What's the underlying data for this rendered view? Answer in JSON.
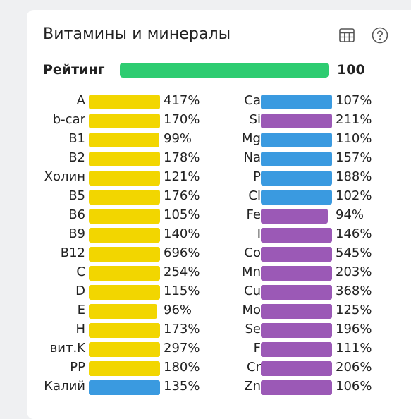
{
  "title": "Витамины и минералы",
  "icons": {
    "table": "table-icon",
    "help": "help-icon"
  },
  "colors": {
    "vitamin": "#f2d600",
    "potassium": "#3a9ae0",
    "mineral_blue": "#3a9ae0",
    "mineral_purple": "#9b59b6",
    "rating": "#2ecc71"
  },
  "rating": {
    "label": "Рейтинг",
    "value": "100",
    "fraction": 1.0
  },
  "vitamins": [
    {
      "name": "A",
      "pct": "417%",
      "fill": 1.0,
      "color": "#f2d600"
    },
    {
      "name": "b-car",
      "pct": "170%",
      "fill": 1.0,
      "color": "#f2d600"
    },
    {
      "name": "B1",
      "pct": "99%",
      "fill": 0.99,
      "color": "#f2d600"
    },
    {
      "name": "B2",
      "pct": "178%",
      "fill": 1.0,
      "color": "#f2d600"
    },
    {
      "name": "Холин",
      "pct": "121%",
      "fill": 1.0,
      "color": "#f2d600"
    },
    {
      "name": "B5",
      "pct": "176%",
      "fill": 1.0,
      "color": "#f2d600"
    },
    {
      "name": "B6",
      "pct": "105%",
      "fill": 1.0,
      "color": "#f2d600"
    },
    {
      "name": "B9",
      "pct": "140%",
      "fill": 1.0,
      "color": "#f2d600"
    },
    {
      "name": "B12",
      "pct": "696%",
      "fill": 1.0,
      "color": "#f2d600"
    },
    {
      "name": "C",
      "pct": "254%",
      "fill": 1.0,
      "color": "#f2d600"
    },
    {
      "name": "D",
      "pct": "115%",
      "fill": 1.0,
      "color": "#f2d600"
    },
    {
      "name": "E",
      "pct": "96%",
      "fill": 0.96,
      "color": "#f2d600"
    },
    {
      "name": "H",
      "pct": "173%",
      "fill": 1.0,
      "color": "#f2d600"
    },
    {
      "name": "вит.K",
      "pct": "297%",
      "fill": 1.0,
      "color": "#f2d600"
    },
    {
      "name": "PP",
      "pct": "180%",
      "fill": 1.0,
      "color": "#f2d600"
    },
    {
      "name": "Калий",
      "pct": "135%",
      "fill": 1.0,
      "color": "#3a9ae0"
    }
  ],
  "minerals": [
    {
      "name": "Ca",
      "pct": "107%",
      "fill": 1.0,
      "color": "#3a9ae0"
    },
    {
      "name": "Si",
      "pct": "211%",
      "fill": 1.0,
      "color": "#9b59b6"
    },
    {
      "name": "Mg",
      "pct": "110%",
      "fill": 1.0,
      "color": "#3a9ae0"
    },
    {
      "name": "Na",
      "pct": "157%",
      "fill": 1.0,
      "color": "#3a9ae0"
    },
    {
      "name": "P",
      "pct": "188%",
      "fill": 1.0,
      "color": "#3a9ae0"
    },
    {
      "name": "Cl",
      "pct": "102%",
      "fill": 1.0,
      "color": "#3a9ae0"
    },
    {
      "name": "Fe",
      "pct": "94%",
      "fill": 0.94,
      "color": "#9b59b6"
    },
    {
      "name": "I",
      "pct": "146%",
      "fill": 1.0,
      "color": "#9b59b6"
    },
    {
      "name": "Co",
      "pct": "545%",
      "fill": 1.0,
      "color": "#9b59b6"
    },
    {
      "name": "Mn",
      "pct": "203%",
      "fill": 1.0,
      "color": "#9b59b6"
    },
    {
      "name": "Cu",
      "pct": "368%",
      "fill": 1.0,
      "color": "#9b59b6"
    },
    {
      "name": "Mo",
      "pct": "125%",
      "fill": 1.0,
      "color": "#9b59b6"
    },
    {
      "name": "Se",
      "pct": "196%",
      "fill": 1.0,
      "color": "#9b59b6"
    },
    {
      "name": "F",
      "pct": "111%",
      "fill": 1.0,
      "color": "#9b59b6"
    },
    {
      "name": "Cr",
      "pct": "206%",
      "fill": 1.0,
      "color": "#9b59b6"
    },
    {
      "name": "Zn",
      "pct": "106%",
      "fill": 1.0,
      "color": "#9b59b6"
    }
  ]
}
